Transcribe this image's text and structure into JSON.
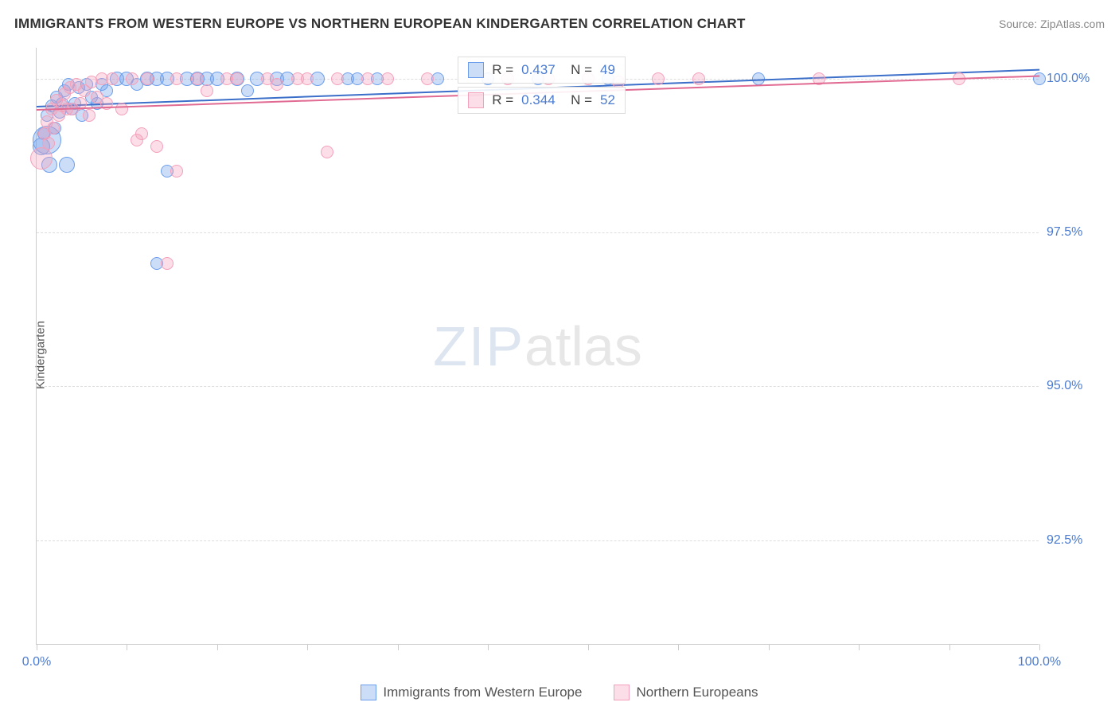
{
  "title": "IMMIGRANTS FROM WESTERN EUROPE VS NORTHERN EUROPEAN KINDERGARTEN CORRELATION CHART",
  "source": "Source: ZipAtlas.com",
  "yaxis_label": "Kindergarten",
  "watermark": {
    "part1": "ZIP",
    "part2": "atlas"
  },
  "chart": {
    "type": "scatter",
    "background_color": "#ffffff",
    "grid_color": "#dddddd",
    "axis_color": "#cccccc",
    "xlim": [
      0,
      100
    ],
    "ylim": [
      90.8,
      100.5
    ],
    "xticks": [
      0,
      9,
      18,
      27,
      36,
      45,
      55,
      64,
      73,
      82,
      91,
      100
    ],
    "xtick_labels": {
      "0": "0.0%",
      "100": "100.0%"
    },
    "yticks": [
      92.5,
      95.0,
      97.5,
      100.0
    ],
    "ytick_labels": [
      "92.5%",
      "95.0%",
      "97.5%",
      "100.0%"
    ],
    "series": [
      {
        "name": "Immigrants from Western Europe",
        "fill": "rgba(109,158,235,0.35)",
        "stroke": "#6d9eeb",
        "trend_color": "#3b6fc9",
        "trend": {
          "x1": 0,
          "y1": 99.55,
          "x2": 100,
          "y2": 100.15
        },
        "R": "0.437",
        "N": "49",
        "points": [
          {
            "x": 0.5,
            "y": 98.9,
            "r": 11
          },
          {
            "x": 0.7,
            "y": 99.1,
            "r": 8
          },
          {
            "x": 1.0,
            "y": 99.4,
            "r": 8
          },
          {
            "x": 1.0,
            "y": 99.0,
            "r": 18
          },
          {
            "x": 1.3,
            "y": 98.6,
            "r": 10
          },
          {
            "x": 1.5,
            "y": 99.55,
            "r": 8
          },
          {
            "x": 1.8,
            "y": 99.2,
            "r": 8
          },
          {
            "x": 2.0,
            "y": 99.7,
            "r": 8
          },
          {
            "x": 2.3,
            "y": 99.45,
            "r": 8
          },
          {
            "x": 2.5,
            "y": 99.6,
            "r": 8
          },
          {
            "x": 2.8,
            "y": 99.8,
            "r": 8
          },
          {
            "x": 3.0,
            "y": 98.6,
            "r": 10
          },
          {
            "x": 3.2,
            "y": 99.9,
            "r": 8
          },
          {
            "x": 3.5,
            "y": 99.5,
            "r": 8
          },
          {
            "x": 3.8,
            "y": 99.6,
            "r": 8
          },
          {
            "x": 4.2,
            "y": 99.85,
            "r": 8
          },
          {
            "x": 4.5,
            "y": 99.4,
            "r": 8
          },
          {
            "x": 5.0,
            "y": 99.9,
            "r": 8
          },
          {
            "x": 5.5,
            "y": 99.7,
            "r": 8
          },
          {
            "x": 6.0,
            "y": 99.6,
            "r": 8
          },
          {
            "x": 6.5,
            "y": 99.9,
            "r": 8
          },
          {
            "x": 7.0,
            "y": 99.8,
            "r": 8
          },
          {
            "x": 8.0,
            "y": 100.0,
            "r": 9
          },
          {
            "x": 9.0,
            "y": 100.0,
            "r": 9
          },
          {
            "x": 10.0,
            "y": 99.9,
            "r": 8
          },
          {
            "x": 11.0,
            "y": 100.0,
            "r": 9
          },
          {
            "x": 12.0,
            "y": 97.0,
            "r": 8
          },
          {
            "x": 12.0,
            "y": 100.0,
            "r": 9
          },
          {
            "x": 13.0,
            "y": 100.0,
            "r": 9
          },
          {
            "x": 13.0,
            "y": 98.5,
            "r": 8
          },
          {
            "x": 15.0,
            "y": 100.0,
            "r": 9
          },
          {
            "x": 16.0,
            "y": 100.0,
            "r": 9
          },
          {
            "x": 17.0,
            "y": 100.0,
            "r": 9
          },
          {
            "x": 18.0,
            "y": 100.0,
            "r": 9
          },
          {
            "x": 20.0,
            "y": 100.0,
            "r": 9
          },
          {
            "x": 21.0,
            "y": 99.8,
            "r": 8
          },
          {
            "x": 22.0,
            "y": 100.0,
            "r": 9
          },
          {
            "x": 24.0,
            "y": 100.0,
            "r": 9
          },
          {
            "x": 25.0,
            "y": 100.0,
            "r": 9
          },
          {
            "x": 28.0,
            "y": 100.0,
            "r": 9
          },
          {
            "x": 31.0,
            "y": 100.0,
            "r": 8
          },
          {
            "x": 32.0,
            "y": 100.0,
            "r": 8
          },
          {
            "x": 34.0,
            "y": 100.0,
            "r": 8
          },
          {
            "x": 40.0,
            "y": 100.0,
            "r": 8
          },
          {
            "x": 45.0,
            "y": 100.0,
            "r": 8
          },
          {
            "x": 50.0,
            "y": 100.0,
            "r": 8
          },
          {
            "x": 57.0,
            "y": 100.0,
            "r": 8
          },
          {
            "x": 72.0,
            "y": 100.0,
            "r": 8
          },
          {
            "x": 100.0,
            "y": 100.0,
            "r": 8
          }
        ]
      },
      {
        "name": "Northern Europeans",
        "fill": "rgba(244,160,186,0.35)",
        "stroke": "#f4a0ba",
        "trend_color": "#e06a92",
        "trend": {
          "x1": 0,
          "y1": 99.5,
          "x2": 100,
          "y2": 100.05
        },
        "R": "0.344",
        "N": "52",
        "points": [
          {
            "x": 0.5,
            "y": 98.7,
            "r": 14
          },
          {
            "x": 0.8,
            "y": 99.1,
            "r": 8
          },
          {
            "x": 1.0,
            "y": 99.3,
            "r": 8
          },
          {
            "x": 1.2,
            "y": 98.95,
            "r": 8
          },
          {
            "x": 1.5,
            "y": 99.5,
            "r": 8
          },
          {
            "x": 1.7,
            "y": 99.2,
            "r": 8
          },
          {
            "x": 2.0,
            "y": 99.65,
            "r": 8
          },
          {
            "x": 2.2,
            "y": 99.4,
            "r": 8
          },
          {
            "x": 2.5,
            "y": 99.55,
            "r": 8
          },
          {
            "x": 2.8,
            "y": 99.75,
            "r": 8
          },
          {
            "x": 3.0,
            "y": 99.5,
            "r": 8
          },
          {
            "x": 3.3,
            "y": 99.85,
            "r": 8
          },
          {
            "x": 3.6,
            "y": 99.5,
            "r": 8
          },
          {
            "x": 4.0,
            "y": 99.9,
            "r": 8
          },
          {
            "x": 4.4,
            "y": 99.6,
            "r": 8
          },
          {
            "x": 4.8,
            "y": 99.8,
            "r": 8
          },
          {
            "x": 5.2,
            "y": 99.4,
            "r": 8
          },
          {
            "x": 5.5,
            "y": 99.95,
            "r": 8
          },
          {
            "x": 6.0,
            "y": 99.7,
            "r": 8
          },
          {
            "x": 6.5,
            "y": 100.0,
            "r": 8
          },
          {
            "x": 7.0,
            "y": 99.6,
            "r": 8
          },
          {
            "x": 7.5,
            "y": 100.0,
            "r": 8
          },
          {
            "x": 8.5,
            "y": 99.5,
            "r": 8
          },
          {
            "x": 9.5,
            "y": 100.0,
            "r": 8
          },
          {
            "x": 10.0,
            "y": 99.0,
            "r": 8
          },
          {
            "x": 10.5,
            "y": 99.1,
            "r": 8
          },
          {
            "x": 11.0,
            "y": 100.0,
            "r": 8
          },
          {
            "x": 12.0,
            "y": 98.9,
            "r": 8
          },
          {
            "x": 13.0,
            "y": 97.0,
            "r": 8
          },
          {
            "x": 14.0,
            "y": 98.5,
            "r": 8
          },
          {
            "x": 14.0,
            "y": 100.0,
            "r": 8
          },
          {
            "x": 16.0,
            "y": 100.0,
            "r": 8
          },
          {
            "x": 17.0,
            "y": 99.8,
            "r": 8
          },
          {
            "x": 19.0,
            "y": 100.0,
            "r": 8
          },
          {
            "x": 20.0,
            "y": 100.0,
            "r": 8
          },
          {
            "x": 23.0,
            "y": 100.0,
            "r": 8
          },
          {
            "x": 24.0,
            "y": 99.9,
            "r": 8
          },
          {
            "x": 26.0,
            "y": 100.0,
            "r": 8
          },
          {
            "x": 27.0,
            "y": 100.0,
            "r": 8
          },
          {
            "x": 29.0,
            "y": 98.8,
            "r": 8
          },
          {
            "x": 30.0,
            "y": 100.0,
            "r": 8
          },
          {
            "x": 33.0,
            "y": 100.0,
            "r": 8
          },
          {
            "x": 35.0,
            "y": 100.0,
            "r": 8
          },
          {
            "x": 39.0,
            "y": 100.0,
            "r": 8
          },
          {
            "x": 47.0,
            "y": 100.0,
            "r": 8
          },
          {
            "x": 51.0,
            "y": 100.0,
            "r": 8
          },
          {
            "x": 55.0,
            "y": 100.0,
            "r": 8
          },
          {
            "x": 58.0,
            "y": 99.95,
            "r": 8
          },
          {
            "x": 62.0,
            "y": 100.0,
            "r": 8
          },
          {
            "x": 66.0,
            "y": 100.0,
            "r": 8
          },
          {
            "x": 78.0,
            "y": 100.0,
            "r": 8
          },
          {
            "x": 92.0,
            "y": 100.0,
            "r": 8
          }
        ]
      }
    ],
    "stats_box": {
      "left_pct": 42,
      "top1_pct": 1.5,
      "top2_pct": 6.5
    },
    "legend_items": [
      {
        "label": "Immigrants from Western Europe",
        "fill": "rgba(109,158,235,0.35)",
        "stroke": "#6d9eeb"
      },
      {
        "label": "Northern Europeans",
        "fill": "rgba(244,160,186,0.35)",
        "stroke": "#f4a0ba"
      }
    ]
  }
}
